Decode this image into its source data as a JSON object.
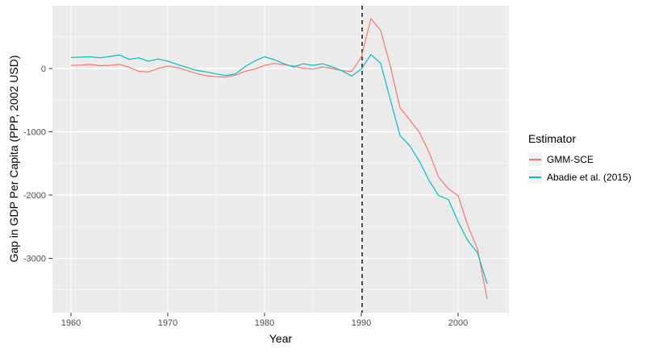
{
  "figure": {
    "background": "#FFFFFF",
    "panel_background": "#EBEBEB",
    "grid_color": "#FFFFFF",
    "axis_text_color": "#4D4D4D",
    "tick_color": "#333333"
  },
  "legend": {
    "title": "Estimator",
    "key_background": "#F2F2F2"
  },
  "chart_data": {
    "type": "line",
    "title": "",
    "xlabel": "Year",
    "ylabel": "Gap in GDP Per Capita (PPP, 2002 USD)",
    "x_ticks": [
      1960,
      1970,
      1980,
      1990,
      2000
    ],
    "x_minor_ticks": [
      1965,
      1975,
      1985,
      1995,
      2005
    ],
    "y_ticks": [
      0,
      -1000,
      -2000,
      -3000
    ],
    "y_tick_labels": [
      "0",
      "-1000",
      "-2000",
      "-3000"
    ],
    "y_minor_ticks": [
      500,
      -500,
      -1500,
      -2500,
      -3500
    ],
    "xlim": [
      1958.1,
      2005.2
    ],
    "ylim": [
      -3860,
      990
    ],
    "grid": true,
    "legend_position": "right",
    "vline": {
      "x": 1990,
      "style": "dashed",
      "color": "#000000"
    },
    "x": [
      1960,
      1961,
      1962,
      1963,
      1964,
      1965,
      1966,
      1967,
      1968,
      1969,
      1970,
      1971,
      1972,
      1973,
      1974,
      1975,
      1976,
      1977,
      1978,
      1979,
      1980,
      1981,
      1982,
      1983,
      1984,
      1985,
      1986,
      1987,
      1988,
      1989,
      1990,
      1991,
      1992,
      1993,
      1994,
      1995,
      1996,
      1997,
      1998,
      1999,
      2000,
      2001,
      2002,
      2003
    ],
    "series": [
      {
        "name": "GMM-SCE",
        "color": "#F8766D",
        "values": [
          50,
          55,
          65,
          45,
          50,
          65,
          20,
          -45,
          -55,
          0,
          40,
          15,
          -30,
          -80,
          -115,
          -130,
          -135,
          -105,
          -45,
          -10,
          50,
          80,
          60,
          40,
          5,
          -10,
          25,
          0,
          -35,
          -50,
          180,
          790,
          600,
          40,
          -620,
          -810,
          -1010,
          -1320,
          -1720,
          -1900,
          -2010,
          -2480,
          -2850,
          -3640
        ]
      },
      {
        "name": "Abadie et al. (2015)",
        "color": "#00BFC4",
        "values": [
          175,
          180,
          185,
          170,
          190,
          215,
          145,
          170,
          115,
          150,
          115,
          65,
          15,
          -30,
          -55,
          -85,
          -110,
          -85,
          30,
          120,
          185,
          140,
          75,
          25,
          75,
          50,
          75,
          25,
          -35,
          -120,
          -10,
          220,
          85,
          -490,
          -1060,
          -1220,
          -1465,
          -1770,
          -2010,
          -2070,
          -2420,
          -2720,
          -2910,
          -3400
        ]
      }
    ]
  }
}
